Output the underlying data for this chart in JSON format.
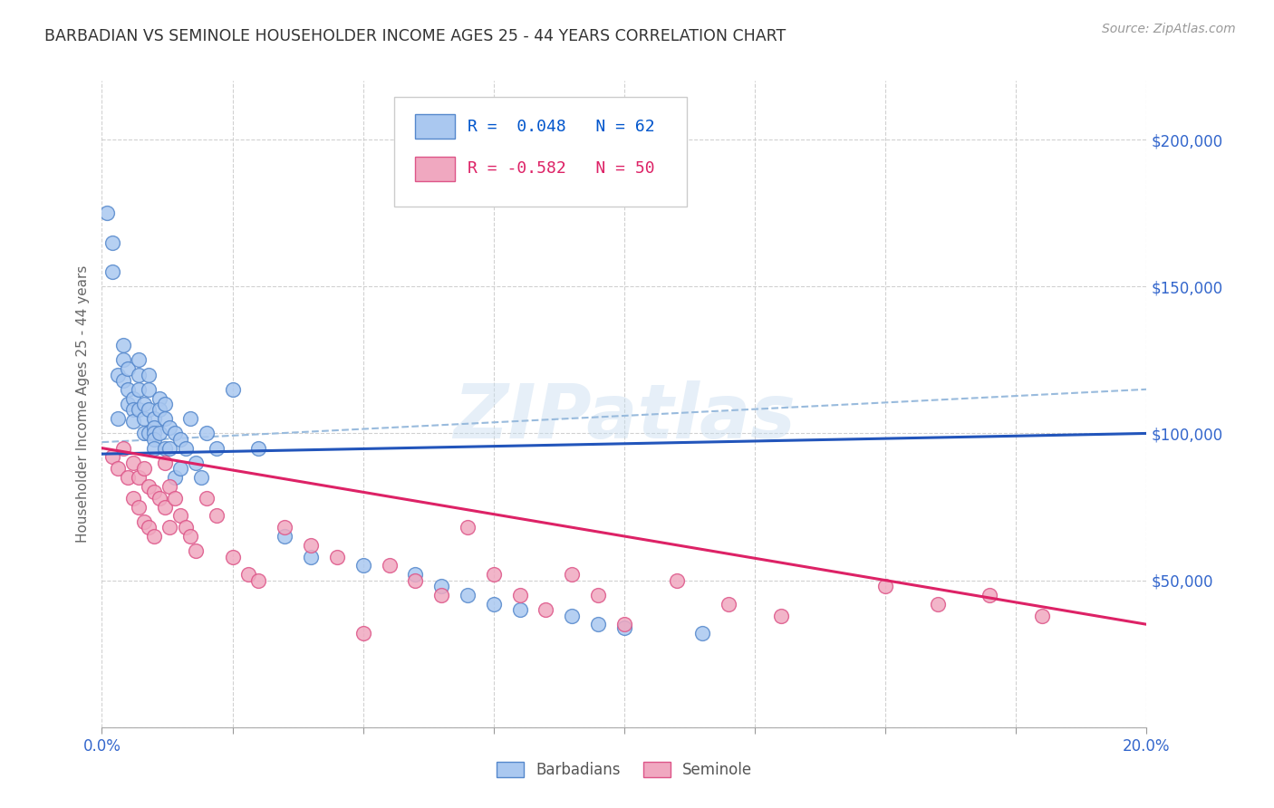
{
  "title": "BARBADIAN VS SEMINOLE HOUSEHOLDER INCOME AGES 25 - 44 YEARS CORRELATION CHART",
  "source": "Source: ZipAtlas.com",
  "ylabel": "Householder Income Ages 25 - 44 years",
  "xlim": [
    0.0,
    0.2
  ],
  "ylim": [
    0,
    220000
  ],
  "xticks": [
    0.0,
    0.025,
    0.05,
    0.075,
    0.1,
    0.125,
    0.15,
    0.175,
    0.2
  ],
  "ytick_positions": [
    0,
    50000,
    100000,
    150000,
    200000
  ],
  "ytick_labels": [
    "",
    "$50,000",
    "$100,000",
    "$150,000",
    "$200,000"
  ],
  "barbadian_color": "#aac8f0",
  "seminole_color": "#f0a8c0",
  "barbadian_edge": "#5588cc",
  "seminole_edge": "#dd5588",
  "trend_barbadian_color": "#2255bb",
  "trend_seminole_color": "#dd2266",
  "trend_dashed_color": "#99bbdd",
  "r1_color": "#0055cc",
  "n1_color": "#0055cc",
  "r2_color": "#dd2266",
  "n2_color": "#0055cc",
  "legend_text1a": "R =  0.048",
  "legend_text1b": "N = 62",
  "legend_text2a": "R = -0.582",
  "legend_text2b": "N = 50",
  "watermark": "ZIPatlas",
  "axis_label_color": "#3366cc",
  "ylabel_color": "#666666",
  "barbadian_x": [
    0.001,
    0.002,
    0.002,
    0.003,
    0.003,
    0.004,
    0.004,
    0.004,
    0.005,
    0.005,
    0.005,
    0.006,
    0.006,
    0.006,
    0.007,
    0.007,
    0.007,
    0.007,
    0.008,
    0.008,
    0.008,
    0.009,
    0.009,
    0.009,
    0.009,
    0.01,
    0.01,
    0.01,
    0.01,
    0.01,
    0.011,
    0.011,
    0.011,
    0.012,
    0.012,
    0.012,
    0.013,
    0.013,
    0.014,
    0.014,
    0.015,
    0.015,
    0.016,
    0.017,
    0.018,
    0.019,
    0.02,
    0.022,
    0.025,
    0.03,
    0.035,
    0.04,
    0.05,
    0.06,
    0.065,
    0.07,
    0.075,
    0.08,
    0.09,
    0.095,
    0.1,
    0.115
  ],
  "barbadian_y": [
    175000,
    165000,
    155000,
    120000,
    105000,
    130000,
    125000,
    118000,
    122000,
    115000,
    110000,
    112000,
    108000,
    104000,
    125000,
    120000,
    115000,
    108000,
    110000,
    105000,
    100000,
    120000,
    115000,
    108000,
    100000,
    105000,
    102000,
    100000,
    98000,
    95000,
    112000,
    108000,
    100000,
    110000,
    105000,
    95000,
    102000,
    95000,
    100000,
    85000,
    98000,
    88000,
    95000,
    105000,
    90000,
    85000,
    100000,
    95000,
    115000,
    95000,
    65000,
    58000,
    55000,
    52000,
    48000,
    45000,
    42000,
    40000,
    38000,
    35000,
    34000,
    32000
  ],
  "seminole_x": [
    0.002,
    0.003,
    0.004,
    0.005,
    0.006,
    0.006,
    0.007,
    0.007,
    0.008,
    0.008,
    0.009,
    0.009,
    0.01,
    0.01,
    0.011,
    0.012,
    0.012,
    0.013,
    0.013,
    0.014,
    0.015,
    0.016,
    0.017,
    0.018,
    0.02,
    0.022,
    0.025,
    0.028,
    0.03,
    0.035,
    0.04,
    0.045,
    0.05,
    0.055,
    0.06,
    0.065,
    0.07,
    0.075,
    0.08,
    0.085,
    0.09,
    0.095,
    0.1,
    0.11,
    0.12,
    0.13,
    0.15,
    0.16,
    0.17,
    0.18
  ],
  "seminole_y": [
    92000,
    88000,
    95000,
    85000,
    90000,
    78000,
    85000,
    75000,
    88000,
    70000,
    82000,
    68000,
    80000,
    65000,
    78000,
    90000,
    75000,
    82000,
    68000,
    78000,
    72000,
    68000,
    65000,
    60000,
    78000,
    72000,
    58000,
    52000,
    50000,
    68000,
    62000,
    58000,
    32000,
    55000,
    50000,
    45000,
    68000,
    52000,
    45000,
    40000,
    52000,
    45000,
    35000,
    50000,
    42000,
    38000,
    48000,
    42000,
    45000,
    38000
  ],
  "trend_b_x0": 0.0,
  "trend_b_x1": 0.2,
  "trend_b_y0": 93000,
  "trend_b_y1": 100000,
  "trend_s_x0": 0.0,
  "trend_s_x1": 0.2,
  "trend_s_y0": 95000,
  "trend_s_y1": 35000,
  "trend_d_x0": 0.0,
  "trend_d_x1": 0.2,
  "trend_d_y0": 97000,
  "trend_d_y1": 115000
}
